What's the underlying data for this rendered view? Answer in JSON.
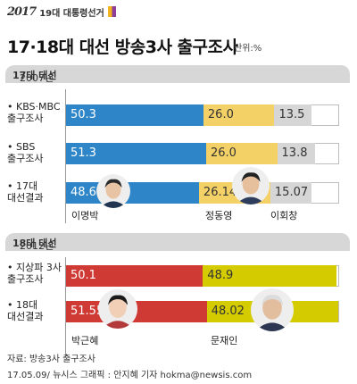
{
  "logo": {
    "mark": "2017",
    "sub": "19대 대통령선거"
  },
  "title": "17·18대 대선 방송3사 출구조사",
  "unit": "단위:%",
  "sections": [
    {
      "year": "2007년",
      "label": "17대 대선"
    },
    {
      "year": "2012년",
      "label": "18대 대선"
    }
  ],
  "colors": {
    "blue": "#2e86c9",
    "yellow17": "#f4d166",
    "gray": "#d6d6d6",
    "red": "#cf3a34",
    "yellow18": "#d4cc00"
  },
  "chart_data": [
    {
      "type": "bar",
      "stacked": true,
      "orientation": "horizontal",
      "title": "2007년 17대 대선",
      "categories": [
        "KBS·MBC 출구조사",
        "SBS 출구조사",
        "17대 대선결과"
      ],
      "category_lines": [
        [
          "• KBS·MBC",
          "출구조사"
        ],
        [
          "• SBS",
          "출구조사"
        ],
        [
          "• 17대",
          "대선결과"
        ]
      ],
      "series": [
        {
          "name": "이명박",
          "values": [
            50.3,
            51.3,
            48.67
          ],
          "labels": [
            "50.3",
            "51.3",
            "48.67"
          ]
        },
        {
          "name": "정동영",
          "values": [
            26.0,
            26.0,
            26.14
          ],
          "labels": [
            "26.0",
            "26.0",
            "26.14"
          ]
        },
        {
          "name": "이회창",
          "values": [
            13.5,
            13.8,
            15.07
          ],
          "labels": [
            "13.5",
            "13.8",
            "15.07"
          ]
        }
      ],
      "candidate_names": [
        "이명박",
        "정동영",
        "이회창"
      ],
      "xlim": [
        0,
        100
      ]
    },
    {
      "type": "bar",
      "stacked": true,
      "orientation": "horizontal",
      "title": "2012년 18대 대선",
      "categories": [
        "지상파 3사 출구조사",
        "18대 대선결과"
      ],
      "category_lines": [
        [
          "• 지상파 3사",
          "출구조사"
        ],
        [
          "• 18대",
          "대선결과"
        ]
      ],
      "series": [
        {
          "name": "박근혜",
          "values": [
            50.1,
            51.55
          ],
          "labels": [
            "50.1",
            "51.55"
          ]
        },
        {
          "name": "문재인",
          "values": [
            48.9,
            48.02
          ],
          "labels": [
            "48.9",
            "48.02"
          ]
        }
      ],
      "candidate_names": [
        "박근혜",
        "문재인"
      ],
      "xlim": [
        0,
        100
      ]
    }
  ],
  "footer": {
    "source": "자료: 방송3사 출구조사",
    "credit": "17.05.09/ 뉴시스 그래픽 : 안지혜 기자 hokma@newsis.com"
  }
}
